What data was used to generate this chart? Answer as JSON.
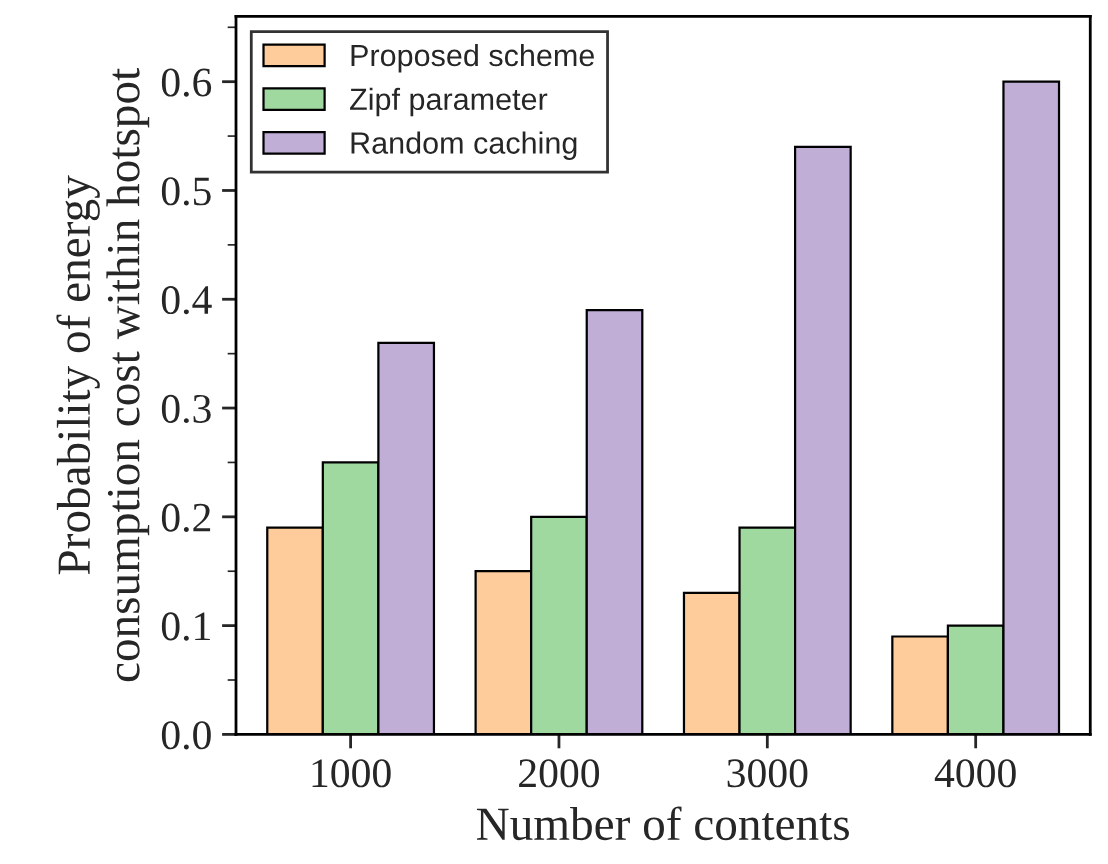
{
  "chart_data": {
    "type": "bar",
    "xlabel": "Number of contents",
    "ylabel": "Probability of energy\nconsumption cost within hotspot",
    "categories": [
      "1000",
      "2000",
      "3000",
      "4000"
    ],
    "series": [
      {
        "name": "Proposed scheme",
        "color": "#fdcc9a",
        "values": [
          0.19,
          0.15,
          0.13,
          0.09
        ]
      },
      {
        "name": "Zipf parameter",
        "color": "#a0d9a0",
        "values": [
          0.25,
          0.2,
          0.19,
          0.1
        ]
      },
      {
        "name": "Random caching",
        "color": "#c0aed6",
        "values": [
          0.36,
          0.39,
          0.54,
          0.6
        ]
      }
    ],
    "ylim": [
      0,
      0.66
    ],
    "yticks": [
      {
        "value": 0,
        "label": "0.0"
      },
      0.1,
      0.2,
      0.3,
      0.4,
      0.5,
      0.6
    ],
    "grid": false,
    "legend": "top left"
  }
}
